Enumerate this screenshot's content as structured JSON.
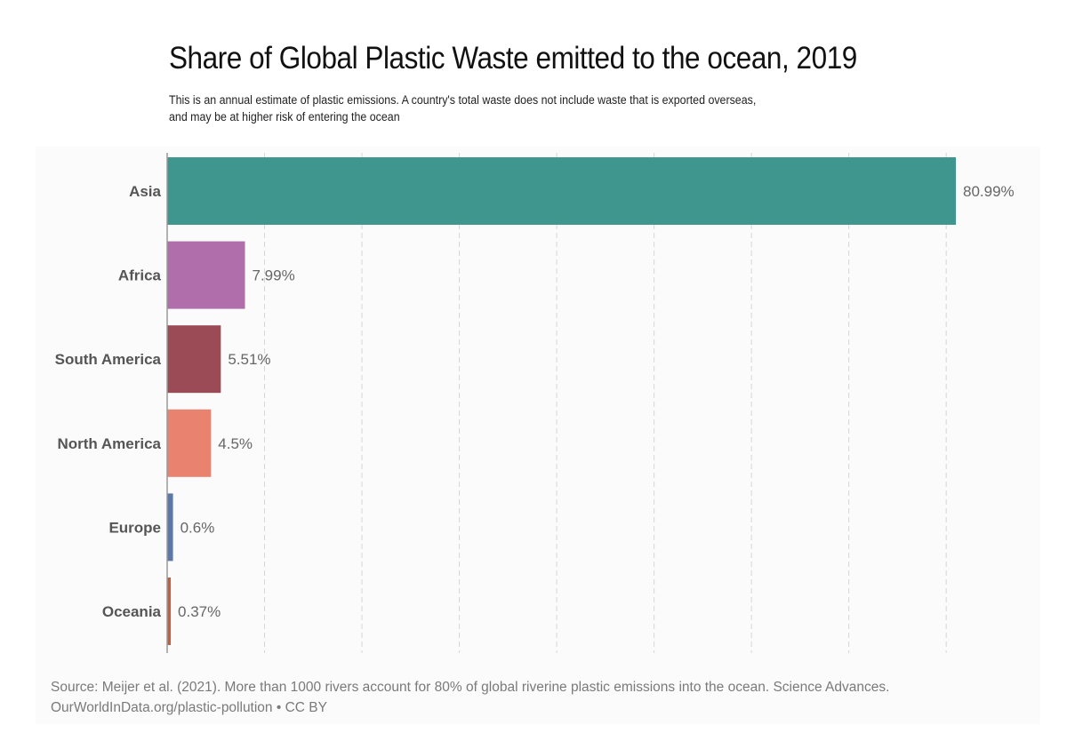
{
  "chart_data": {
    "type": "bar",
    "orientation": "horizontal",
    "title": "Share of Global Plastic Waste emitted to the ocean, 2019",
    "subtitle_lines": [
      "This is an annual estimate of plastic emissions. A country's total waste does not include waste that is exported overseas,",
      "and may be at higher risk of entering the ocean"
    ],
    "categories": [
      "Asia",
      "Africa",
      "South America",
      "North America",
      "Europe",
      "Oceania"
    ],
    "values": [
      80.99,
      7.99,
      5.51,
      4.5,
      0.6,
      0.37
    ],
    "value_labels": [
      "80.99%",
      "7.99%",
      "5.51%",
      "4.5%",
      "0.6%",
      "0.37%"
    ],
    "colors": [
      "#3e968e",
      "#b06fab",
      "#9b4b55",
      "#e9826f",
      "#5b78ad",
      "#c0603f"
    ],
    "xlim": [
      0,
      81
    ],
    "grid": true,
    "grid_step": 10,
    "unit": "%"
  },
  "source": {
    "line1": "Source: Meijer et al. (2021). More than 1000 rivers account for 80% of global riverine plastic emissions into the ocean. Science Advances.",
    "line2": "OurWorldInData.org/plastic-pollution • CC BY"
  }
}
